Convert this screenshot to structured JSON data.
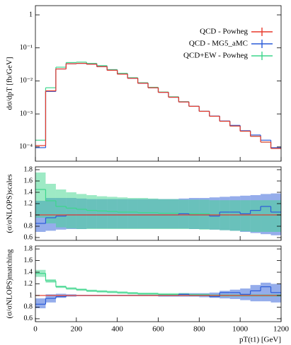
{
  "chart_data": [
    {
      "type": "histogram",
      "ylabel": "dσ/dpT [fb/GeV]",
      "log": true,
      "legend": "top-right",
      "bins": [
        0,
        50,
        100,
        150,
        200,
        250,
        300,
        350,
        400,
        450,
        500,
        550,
        600,
        650,
        700,
        750,
        800,
        850,
        900,
        950,
        1000,
        1050,
        1100,
        1150,
        1200
      ],
      "xlim": [
        0,
        1200
      ],
      "ylim": [
        3.7e-05,
        1.9
      ],
      "yticks": [
        1,
        {
          "value": 0.1,
          "label": "10⁻¹"
        },
        {
          "value": 0.01,
          "label": "10⁻²"
        },
        {
          "value": 0.001,
          "label": "10⁻³"
        },
        {
          "value": 0.0001,
          "label": "10⁻⁴"
        }
      ],
      "series": [
        {
          "name": "QCD - Powheg",
          "color": "#e8392b",
          "values": [
            0.00011,
            0.005,
            0.023,
            0.033,
            0.034,
            0.032,
            0.027,
            0.021,
            0.016,
            0.012,
            0.0085,
            0.0062,
            0.0045,
            0.0032,
            0.0023,
            0.0017,
            0.0012,
            0.00085,
            0.0006,
            0.00043,
            0.0003,
            0.00021,
            0.00014,
            9e-05
          ]
        },
        {
          "name": "QCD - MG5_aMC",
          "color": "#2b5bd8",
          "values": [
            9.5e-05,
            0.0048,
            0.023,
            0.033,
            0.034,
            0.032,
            0.027,
            0.021,
            0.016,
            0.012,
            0.0085,
            0.0062,
            0.0045,
            0.0032,
            0.0023,
            0.0017,
            0.0012,
            0.00086,
            0.00061,
            0.00045,
            0.00031,
            0.00023,
            0.00016,
            9.5e-05
          ]
        },
        {
          "name": "QCD+EW - Powheg",
          "color": "#3dd68c",
          "values": [
            0.00016,
            0.0062,
            0.026,
            0.036,
            0.037,
            0.034,
            0.029,
            0.022,
            0.017,
            0.0125,
            0.0088,
            0.0064,
            0.0046,
            0.0033,
            0.00235,
            0.0017,
            0.0012,
            0.00085,
            0.0006,
            0.00043,
            0.0003,
            0.00021,
            0.00014,
            9e-05
          ]
        }
      ]
    },
    {
      "type": "histogram",
      "ylabel": "(σ/σNLOPS)scales",
      "bins": [
        0,
        50,
        100,
        150,
        200,
        250,
        300,
        350,
        400,
        450,
        500,
        550,
        600,
        650,
        700,
        750,
        800,
        850,
        900,
        950,
        1000,
        1050,
        1100,
        1150,
        1200
      ],
      "xlim": [
        0,
        1200
      ],
      "ylim": [
        0.55,
        1.85
      ],
      "yticks": [
        0.6,
        0.8,
        1,
        1.2,
        1.4,
        1.6,
        1.8
      ],
      "series": [
        {
          "color": "#e8392b",
          "values": [
            1,
            1,
            1,
            1,
            1,
            1,
            1,
            1,
            1,
            1,
            1,
            1,
            1,
            1,
            1,
            1,
            1,
            1,
            1,
            1,
            1,
            1,
            1,
            1
          ]
        },
        {
          "color": "#2b5bd8",
          "values": [
            0.85,
            0.95,
            0.98,
            1.0,
            1.0,
            1.0,
            1.0,
            1.0,
            1.0,
            1.0,
            1.0,
            1.0,
            1.0,
            1.0,
            1.02,
            1.0,
            1.0,
            0.98,
            1.05,
            1.05,
            1.02,
            1.08,
            1.15,
            1.05
          ],
          "band_low": [
            0.7,
            0.72,
            0.74,
            0.75,
            0.75,
            0.76,
            0.76,
            0.76,
            0.76,
            0.76,
            0.76,
            0.76,
            0.76,
            0.76,
            0.76,
            0.75,
            0.75,
            0.74,
            0.73,
            0.72,
            0.7,
            0.68,
            0.66,
            0.64
          ],
          "band_high": [
            1.25,
            1.3,
            1.3,
            1.3,
            1.29,
            1.28,
            1.28,
            1.28,
            1.28,
            1.28,
            1.28,
            1.28,
            1.28,
            1.28,
            1.29,
            1.3,
            1.3,
            1.31,
            1.32,
            1.33,
            1.34,
            1.35,
            1.37,
            1.38
          ]
        },
        {
          "color": "#3dd68c",
          "values": [
            1.45,
            1.25,
            1.15,
            1.12,
            1.1,
            1.08,
            1.07,
            1.06,
            1.05,
            1.05,
            1.04,
            1.04,
            1.03,
            1.03,
            1.02,
            1.02,
            1.02,
            1.0,
            1.0,
            1.0,
            1.0,
            1.0,
            1.0,
            1.0
          ],
          "band_low": [
            0.95,
            0.85,
            0.78,
            0.76,
            0.75,
            0.75,
            0.75,
            0.75,
            0.75,
            0.75,
            0.75,
            0.75,
            0.75,
            0.75,
            0.75,
            0.75,
            0.74,
            0.74,
            0.73,
            0.72,
            0.71,
            0.7,
            0.7,
            0.7
          ],
          "band_high": [
            1.75,
            1.55,
            1.45,
            1.4,
            1.37,
            1.35,
            1.33,
            1.32,
            1.31,
            1.3,
            1.3,
            1.29,
            1.28,
            1.28,
            1.27,
            1.27,
            1.27,
            1.26,
            1.26,
            1.26,
            1.26,
            1.26,
            1.26,
            1.26
          ]
        }
      ]
    },
    {
      "type": "histogram",
      "ylabel": "(σ/σNLOPS)matching",
      "xlabel": "pT(t1) [GeV]",
      "bins": [
        0,
        50,
        100,
        150,
        200,
        250,
        300,
        350,
        400,
        450,
        500,
        550,
        600,
        650,
        700,
        750,
        800,
        850,
        900,
        950,
        1000,
        1050,
        1100,
        1150,
        1200
      ],
      "xlim": [
        0,
        1200
      ],
      "xticks": [
        0,
        200,
        400,
        600,
        800,
        1000,
        1200
      ],
      "ylim": [
        0.55,
        1.85
      ],
      "yticks": [
        0.6,
        0.8,
        1,
        1.2,
        1.4,
        1.6,
        1.8
      ],
      "series": [
        {
          "color": "#e8392b",
          "values": [
            1,
            1,
            1,
            1,
            1,
            1,
            1,
            1,
            1,
            1,
            1,
            1,
            1,
            1,
            1,
            1,
            1,
            1,
            1,
            1,
            1,
            1,
            1,
            1
          ]
        },
        {
          "color": "#2b5bd8",
          "values": [
            0.85,
            0.95,
            0.98,
            1.0,
            1.0,
            1.0,
            1.0,
            1.0,
            1.0,
            1.0,
            1.0,
            1.0,
            1.0,
            1.0,
            1.02,
            1.0,
            1.0,
            0.98,
            1.05,
            1.05,
            1.02,
            1.08,
            1.15,
            1.05
          ],
          "band_low": [
            0.78,
            0.88,
            0.96,
            0.98,
            0.99,
            0.99,
            0.99,
            0.99,
            0.99,
            0.99,
            0.99,
            0.99,
            0.98,
            0.98,
            0.98,
            0.98,
            0.97,
            0.96,
            0.95,
            0.94,
            0.92,
            0.9,
            0.9,
            0.88
          ],
          "band_high": [
            0.95,
            1.02,
            1.03,
            1.02,
            1.01,
            1.01,
            1.01,
            1.01,
            1.01,
            1.01,
            1.01,
            1.01,
            1.02,
            1.02,
            1.04,
            1.04,
            1.04,
            1.05,
            1.08,
            1.1,
            1.12,
            1.18,
            1.22,
            1.2
          ]
        },
        {
          "color": "#3dd68c",
          "values": [
            1.38,
            1.25,
            1.15,
            1.12,
            1.1,
            1.08,
            1.07,
            1.06,
            1.05,
            1.04,
            1.03,
            1.03,
            1.02,
            1.02,
            1.02,
            1.01,
            1.01,
            1.0,
            1.0,
            1.0,
            1.0,
            1.0,
            1.0,
            1.0
          ],
          "band_low": [
            1.32,
            1.22,
            1.13,
            1.1,
            1.08,
            1.06,
            1.05,
            1.04,
            1.03,
            1.02,
            1.01,
            1.01,
            1.0,
            1.0,
            1.0,
            0.99,
            0.99,
            0.98,
            0.98,
            0.98,
            0.98,
            0.98,
            0.98,
            0.98
          ],
          "band_high": [
            1.44,
            1.28,
            1.17,
            1.14,
            1.12,
            1.1,
            1.09,
            1.08,
            1.07,
            1.06,
            1.05,
            1.05,
            1.04,
            1.04,
            1.04,
            1.03,
            1.03,
            1.02,
            1.02,
            1.02,
            1.02,
            1.02,
            1.02,
            1.02
          ]
        }
      ]
    }
  ]
}
